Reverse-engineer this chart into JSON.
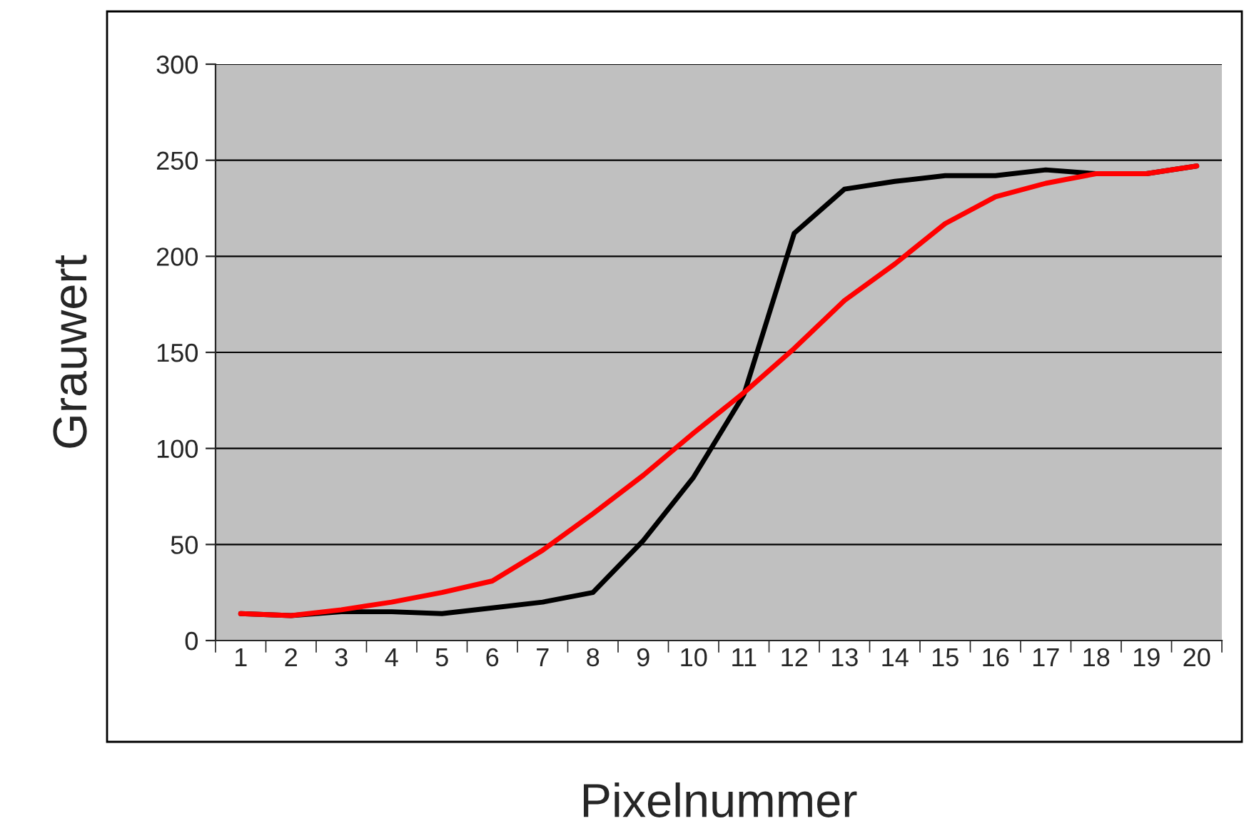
{
  "chart_data": {
    "type": "line",
    "xlabel": "Pixelnummer",
    "ylabel": "Grauwert",
    "categories": [
      "1",
      "2",
      "3",
      "4",
      "5",
      "6",
      "7",
      "8",
      "9",
      "10",
      "11",
      "12",
      "13",
      "14",
      "15",
      "16",
      "17",
      "18",
      "19",
      "20"
    ],
    "series": [
      {
        "color": "#000000",
        "values": [
          14,
          13,
          15,
          15,
          14,
          17,
          20,
          25,
          52,
          85,
          128,
          212,
          235,
          239,
          242,
          242,
          245,
          243,
          243,
          247
        ]
      },
      {
        "color": "#ff0000",
        "values": [
          14,
          13,
          16,
          20,
          25,
          31,
          47,
          66,
          86,
          108,
          129,
          152,
          177,
          196,
          217,
          231,
          238,
          243,
          243,
          247
        ]
      }
    ],
    "ylim": [
      0,
      300
    ],
    "yticks": [
      0,
      50,
      100,
      150,
      200,
      250,
      300
    ],
    "grid": "y",
    "marker": "none",
    "line_style": "solid"
  }
}
